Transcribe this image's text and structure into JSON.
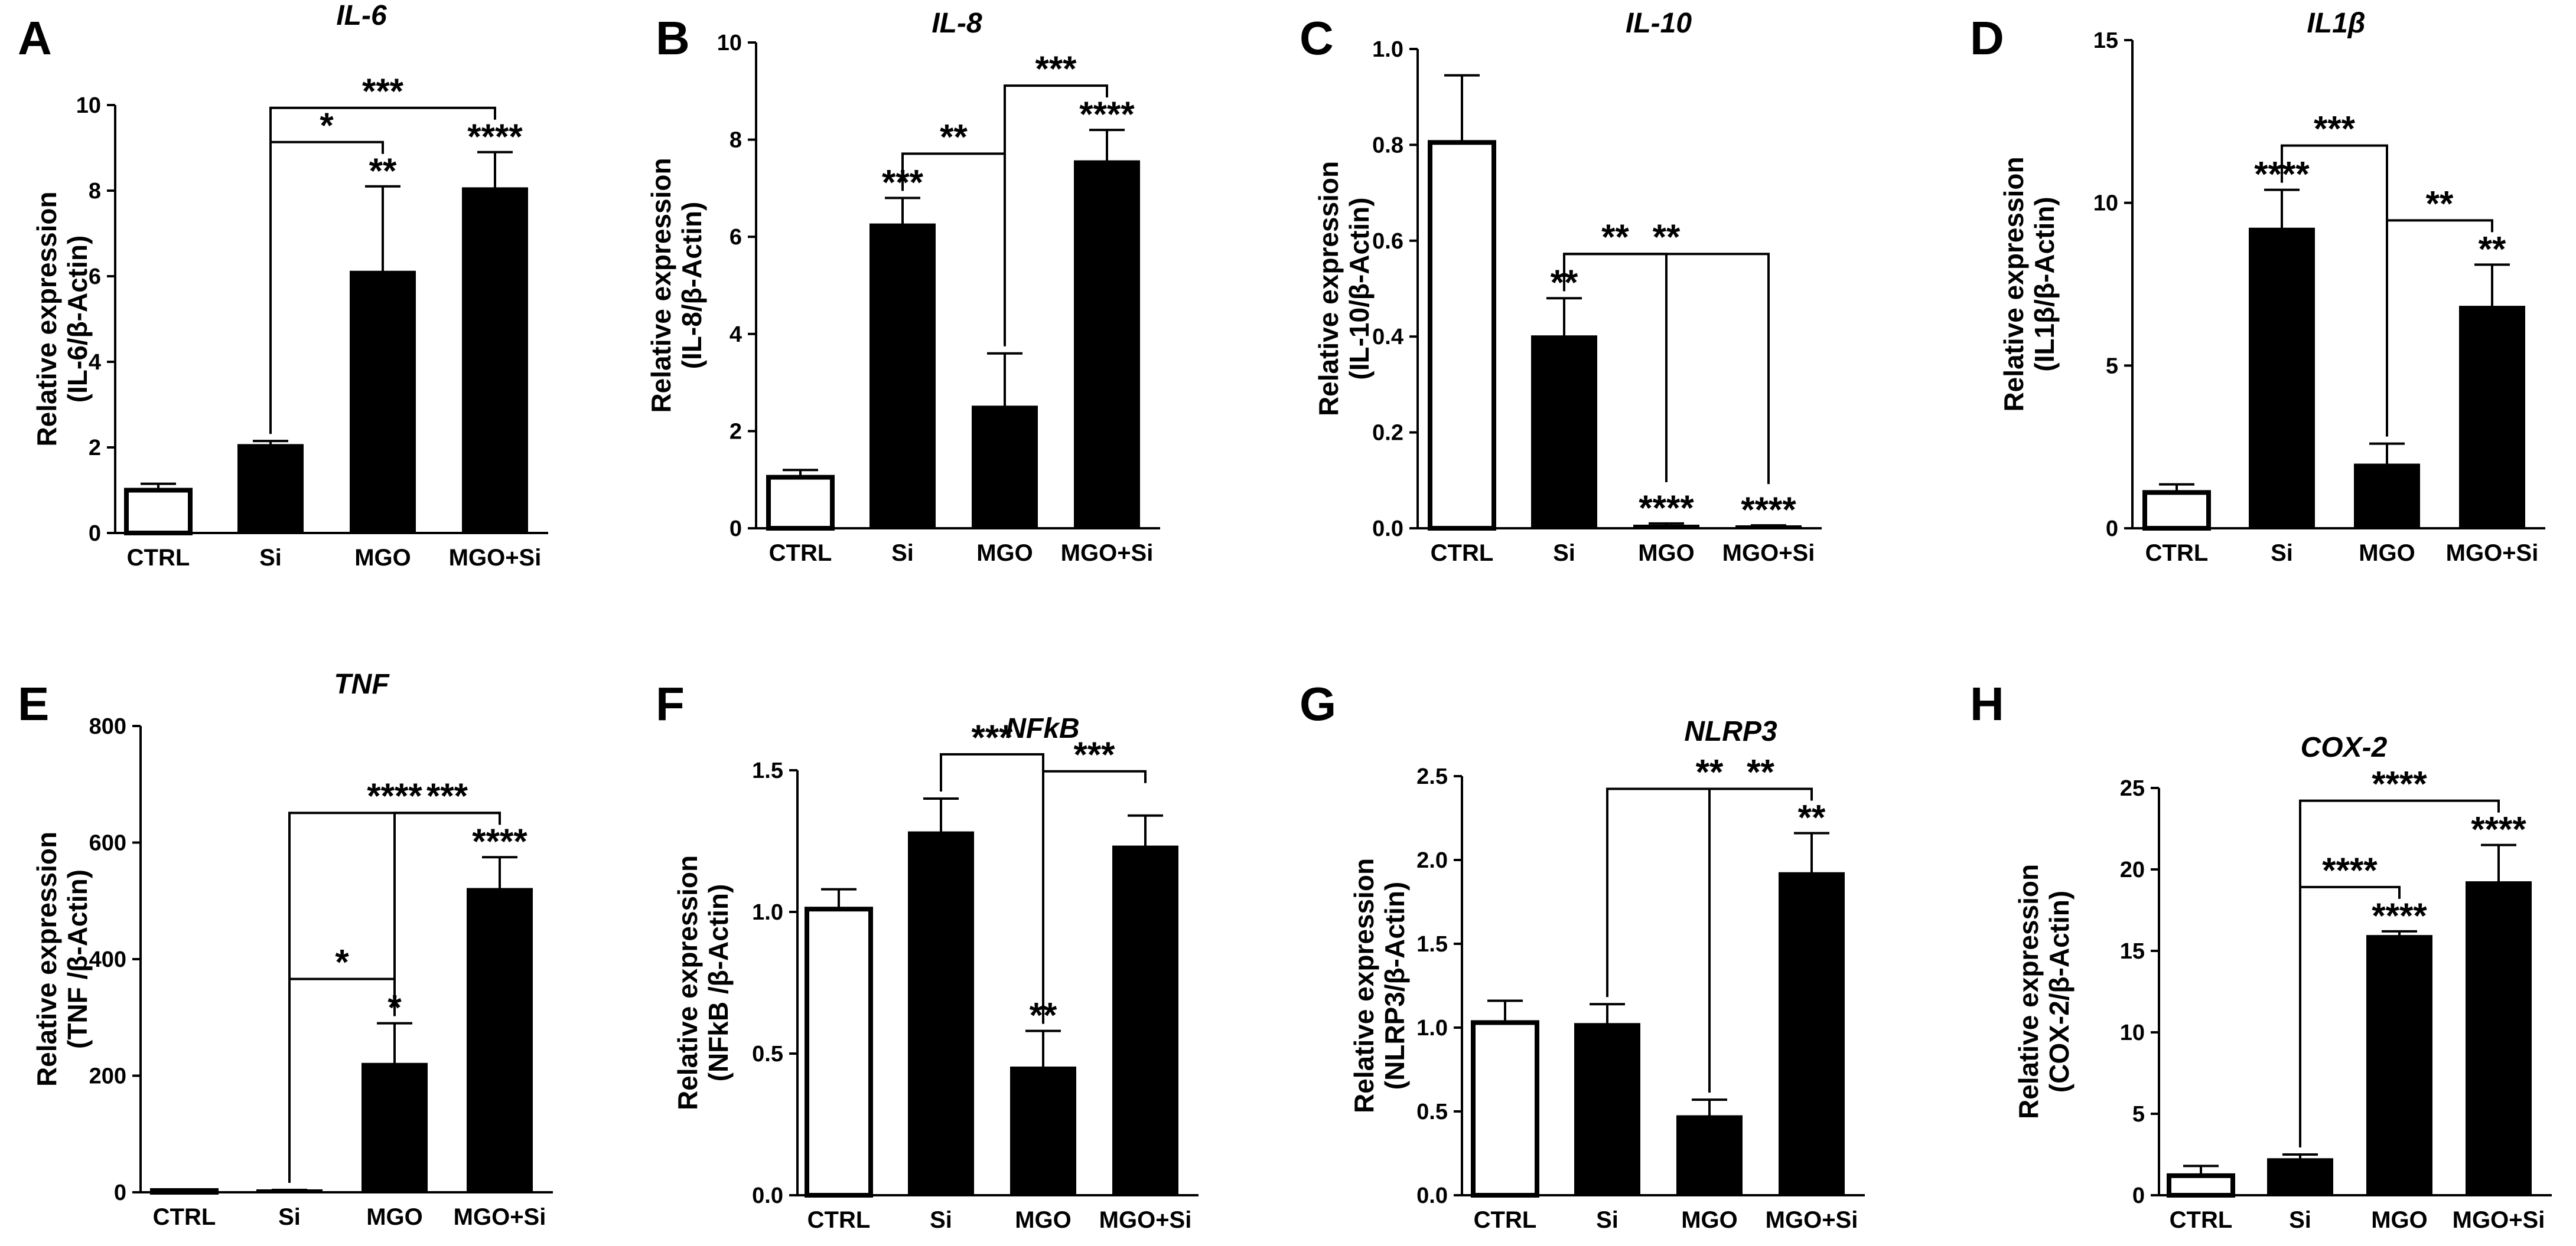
{
  "chart_data": [
    {
      "panel": "A",
      "type": "bar",
      "title": "IL-6",
      "ylabel": [
        "Relative expression",
        "(IL-6/β-Actin)"
      ],
      "categories": [
        "CTRL",
        "Si",
        "MGO",
        "MGO+Si"
      ],
      "values": [
        1.0,
        2.05,
        6.1,
        8.05
      ],
      "errors": [
        0.15,
        0.1,
        2.0,
        0.85
      ],
      "ylim": [
        0,
        10
      ],
      "yticks": [
        "0",
        "2",
        "4",
        "6",
        "8",
        "10"
      ],
      "stars": [
        "",
        "",
        "**",
        "****"
      ],
      "brackets": [
        {
          "from": 1,
          "to": 3,
          "label": "***"
        },
        {
          "from": 1,
          "to": 2,
          "label": "*"
        }
      ]
    },
    {
      "panel": "B",
      "type": "bar",
      "title": "IL-8",
      "ylabel": [
        "Relative expression",
        "(IL-8/β-Actin)"
      ],
      "categories": [
        "CTRL",
        "Si",
        "MGO",
        "MGO+Si"
      ],
      "values": [
        1.05,
        6.25,
        2.5,
        7.55
      ],
      "errors": [
        0.15,
        0.55,
        1.1,
        0.65
      ],
      "ylim": [
        0,
        10
      ],
      "yticks": [
        "0",
        "2",
        "4",
        "6",
        "8",
        "10"
      ],
      "stars": [
        "",
        "***",
        "",
        "****"
      ],
      "brackets": [
        {
          "from": 1,
          "to": 2,
          "label": "**"
        },
        {
          "from": 2,
          "to": 3,
          "label": "***"
        }
      ]
    },
    {
      "panel": "C",
      "type": "bar",
      "title": "IL-10",
      "ylabel": [
        "Relative expression",
        "(IL-10/β-Actin)"
      ],
      "categories": [
        "CTRL",
        "Si",
        "MGO",
        "MGO+Si"
      ],
      "values": [
        0.805,
        0.4,
        0.005,
        0.003
      ],
      "errors": [
        0.14,
        0.08,
        0.005,
        0.003
      ],
      "ylim": [
        0,
        1
      ],
      "yticks": [
        "0.0",
        "0.2",
        "0.4",
        "0.6",
        "0.8",
        "1.0"
      ],
      "stars": [
        "",
        "**",
        "****",
        "****"
      ],
      "brackets": [
        {
          "from": 1,
          "to": 3,
          "label": "**"
        },
        {
          "from": 1,
          "to": 2,
          "label": "**"
        }
      ]
    },
    {
      "panel": "D",
      "type": "bar",
      "title": "IL1β",
      "ylabel": [
        "Relative expression",
        "(IL1β/β-Actin)"
      ],
      "categories": [
        "CTRL",
        "Si",
        "MGO",
        "MGO+Si"
      ],
      "values": [
        1.1,
        9.2,
        1.95,
        6.8
      ],
      "errors": [
        0.25,
        1.2,
        0.65,
        1.3
      ],
      "ylim": [
        0,
        15
      ],
      "yticks": [
        "0",
        "5",
        "10",
        "15"
      ],
      "stars": [
        "",
        "****",
        "",
        "**"
      ],
      "brackets": [
        {
          "from": 1,
          "to": 2,
          "label": "***"
        },
        {
          "from": 2,
          "to": 3,
          "label": "**"
        }
      ]
    },
    {
      "panel": "E",
      "type": "bar",
      "title": "TNF",
      "ylabel": [
        "Relative expression",
        "(TNF /β-Actin)"
      ],
      "categories": [
        "CTRL",
        "Si",
        "MGO",
        "MGO+Si"
      ],
      "values": [
        1,
        3,
        220,
        520
      ],
      "errors": [
        1,
        1,
        70,
        55
      ],
      "ylim": [
        0,
        800
      ],
      "yticks": [
        "0",
        "200",
        "400",
        "600",
        "800"
      ],
      "stars": [
        "",
        "",
        "*",
        "****"
      ],
      "brackets": [
        {
          "from": 1,
          "to": 3,
          "label": "****"
        },
        {
          "from": 2,
          "to": 3,
          "label": "***"
        },
        {
          "from": 1,
          "to": 2,
          "label": "*"
        }
      ]
    },
    {
      "panel": "F",
      "type": "bar",
      "title": "NFkB",
      "ylabel": [
        "Relative expression",
        "(NFkB /β-Actin)"
      ],
      "categories": [
        "CTRL",
        "Si",
        "MGO",
        "MGO+Si"
      ],
      "values": [
        1.01,
        1.28,
        0.45,
        1.23
      ],
      "errors": [
        0.07,
        0.12,
        0.13,
        0.11
      ],
      "ylim": [
        0,
        1.5
      ],
      "yticks": [
        "0.0",
        "0.5",
        "1.0",
        "1.5"
      ],
      "stars": [
        "",
        "",
        "**",
        ""
      ],
      "brackets": [
        {
          "from": 1,
          "to": 2,
          "label": "***"
        },
        {
          "from": 2,
          "to": 3,
          "label": "***"
        }
      ]
    },
    {
      "panel": "G",
      "type": "bar",
      "title": "NLRP3",
      "ylabel": [
        "Relative expression",
        "(NLRP3/β-Actin)"
      ],
      "categories": [
        "CTRL",
        "Si",
        "MGO",
        "MGO+Si"
      ],
      "values": [
        1.03,
        1.02,
        0.47,
        1.92
      ],
      "errors": [
        0.13,
        0.12,
        0.1,
        0.24
      ],
      "ylim": [
        0,
        2.5
      ],
      "yticks": [
        "0.0",
        "0.5",
        "1.0",
        "1.5",
        "2.0",
        "2.5"
      ],
      "stars": [
        "",
        "",
        "",
        "**"
      ],
      "brackets": [
        {
          "from": 1,
          "to": 3,
          "label": "**"
        },
        {
          "from": 2,
          "to": 3,
          "label": "**"
        }
      ]
    },
    {
      "panel": "H",
      "type": "bar",
      "title": "COX-2",
      "ylabel": [
        "Relative expression",
        "(COX-2/β-Actin)"
      ],
      "categories": [
        "CTRL",
        "Si",
        "MGO",
        "MGO+Si"
      ],
      "values": [
        1.2,
        2.2,
        15.9,
        19.2
      ],
      "errors": [
        0.6,
        0.3,
        0.3,
        2.3
      ],
      "ylim": [
        0,
        25
      ],
      "yticks": [
        "0",
        "5",
        "10",
        "15",
        "20",
        "25"
      ],
      "stars": [
        "",
        "",
        "****",
        "****"
      ],
      "brackets": [
        {
          "from": 1,
          "to": 2,
          "label": "****"
        },
        {
          "from": 1,
          "to": 3,
          "label": "****"
        }
      ]
    }
  ]
}
